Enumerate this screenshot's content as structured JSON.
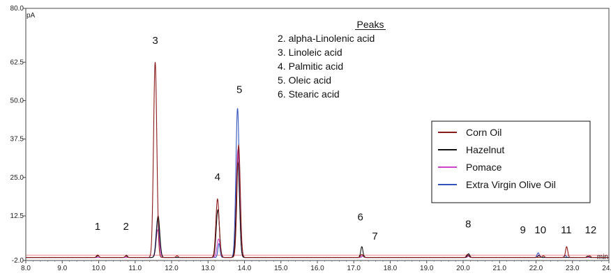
{
  "chart_data": {
    "type": "line",
    "title": "",
    "xlabel": "min",
    "ylabel": "pA",
    "xlim": [
      8.0,
      24.0
    ],
    "ylim": [
      -2.0,
      80.0
    ],
    "grid": false,
    "legend_position": "right",
    "x_ticks": [
      "8.0",
      "9.0",
      "10.0",
      "11.0",
      "12.0",
      "13.0",
      "14.0",
      "15.0",
      "16.0",
      "17.0",
      "18.0",
      "19.0",
      "20.0",
      "21.0",
      "22.0",
      "23.0",
      "24.0"
    ],
    "y_ticks": [
      "-2.0",
      "12.5",
      "25.0",
      "37.5",
      "50.0",
      "62.5",
      "80.0"
    ],
    "annotations": {
      "heading": "Peaks",
      "items": [
        "2. alpha-Linolenic acid",
        "3. Linoleic acid",
        "4. Palmitic acid",
        "5. Oleic acid",
        "6. Stearic acid"
      ]
    },
    "peak_labels": [
      {
        "label": "1",
        "x": 9.97,
        "y": 8.0
      },
      {
        "label": "2",
        "x": 10.75,
        "y": 8.0
      },
      {
        "label": "3",
        "x": 11.55,
        "y": 68.5
      },
      {
        "label": "4",
        "x": 13.26,
        "y": 24.0
      },
      {
        "label": "5",
        "x": 13.86,
        "y": 52.5
      },
      {
        "label": "6",
        "x": 17.18,
        "y": 11.0
      },
      {
        "label": "7",
        "x": 17.58,
        "y": 4.8
      },
      {
        "label": "8",
        "x": 20.14,
        "y": 8.8
      },
      {
        "label": "9",
        "x": 21.64,
        "y": 6.8
      },
      {
        "label": "10",
        "x": 22.12,
        "y": 6.8
      },
      {
        "label": "11",
        "x": 22.83,
        "y": 6.8
      },
      {
        "label": "12",
        "x": 23.5,
        "y": 6.8
      }
    ],
    "baseline": -1.0,
    "series": [
      {
        "name": "Corn Oil",
        "color": "#8b1a1a",
        "peaks": [
          {
            "x": 9.97,
            "h": 0.8
          },
          {
            "x": 10.75,
            "h": 0.4
          },
          {
            "x": 11.55,
            "h": 63.5
          },
          {
            "x": 12.15,
            "h": 0.5
          },
          {
            "x": 13.26,
            "h": 19.0
          },
          {
            "x": 13.84,
            "h": 36.5
          },
          {
            "x": 17.22,
            "h": 1.0
          },
          {
            "x": 20.12,
            "h": 1.0
          },
          {
            "x": 22.2,
            "h": 0.5
          },
          {
            "x": 22.84,
            "h": 3.5
          },
          {
            "x": 23.47,
            "h": 0.5
          }
        ]
      },
      {
        "name": "Hazelnut",
        "color": "#111111",
        "peaks": [
          {
            "x": 9.98,
            "h": 0.5
          },
          {
            "x": 10.76,
            "h": 0.6
          },
          {
            "x": 11.63,
            "h": 13.5
          },
          {
            "x": 13.27,
            "h": 15.5
          },
          {
            "x": 13.82,
            "h": 31.0
          },
          {
            "x": 17.22,
            "h": 3.5
          },
          {
            "x": 20.15,
            "h": 1.2
          },
          {
            "x": 22.08,
            "h": 0.6
          },
          {
            "x": 23.42,
            "h": 0.4
          }
        ]
      },
      {
        "name": "Pomace",
        "color": "#cc44cc",
        "peaks": [
          {
            "x": 11.62,
            "h": 9.0
          },
          {
            "x": 13.29,
            "h": 6.0
          },
          {
            "x": 13.82,
            "h": 35.0
          },
          {
            "x": 17.25,
            "h": 0.6
          },
          {
            "x": 20.16,
            "h": 0.5
          },
          {
            "x": 22.08,
            "h": 0.8
          }
        ]
      },
      {
        "name": "Extra Virgin Olive Oil",
        "color": "#3355bb",
        "peaks": [
          {
            "x": 11.62,
            "h": 12.5
          },
          {
            "x": 13.3,
            "h": 4.5
          },
          {
            "x": 13.81,
            "h": 48.5
          },
          {
            "x": 17.26,
            "h": 0.6
          },
          {
            "x": 20.14,
            "h": 0.8
          },
          {
            "x": 22.06,
            "h": 1.5
          },
          {
            "x": 22.8,
            "h": 0.6
          }
        ]
      }
    ]
  }
}
